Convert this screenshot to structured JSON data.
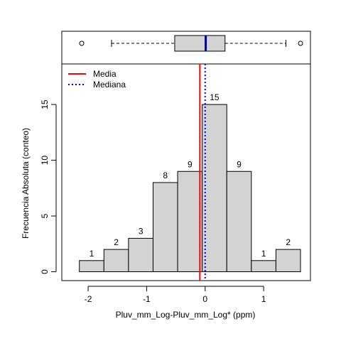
{
  "chart_data": {
    "type": "bar",
    "title": "",
    "xlabel": "Pluv_mm_Log-Pluv_mm_Log* (ppm)",
    "ylabel": "Frecuencia Absoluta (conteo)",
    "bins": [
      {
        "x0": -2.15,
        "x1": -1.73,
        "count": 1
      },
      {
        "x0": -1.73,
        "x1": -1.31,
        "count": 2
      },
      {
        "x0": -1.31,
        "x1": -0.89,
        "count": 3
      },
      {
        "x0": -0.89,
        "x1": -0.47,
        "count": 8
      },
      {
        "x0": -0.47,
        "x1": -0.05,
        "count": 9
      },
      {
        "x0": -0.05,
        "x1": 0.37,
        "count": 15
      },
      {
        "x0": 0.37,
        "x1": 0.79,
        "count": 9
      },
      {
        "x0": 0.79,
        "x1": 1.21,
        "count": 1
      },
      {
        "x0": 1.21,
        "x1": 1.63,
        "count": 2
      }
    ],
    "xlim": [
      -2.45,
      1.8
    ],
    "ylim": [
      0,
      18
    ],
    "x_ticks": [
      -2,
      -1,
      0,
      1
    ],
    "y_ticks": [
      0,
      5,
      10,
      15
    ],
    "mean": -0.09,
    "median": 0.0,
    "bar_color": "#d3d3d3",
    "mean_color": "#ff0000",
    "median_color": "#0000ff",
    "legend": {
      "placement": "top-left",
      "entries": [
        {
          "label": "Media",
          "style": "solid",
          "color": "#ff0000"
        },
        {
          "label": "Mediana",
          "style": "dotted",
          "color": "#0000ff"
        }
      ]
    },
    "boxplot": {
      "q1": -0.52,
      "median": 0.01,
      "q3": 0.34,
      "whisker_low": -1.6,
      "whisker_high": 1.38,
      "outliers": [
        -2.11,
        1.63
      ]
    }
  }
}
